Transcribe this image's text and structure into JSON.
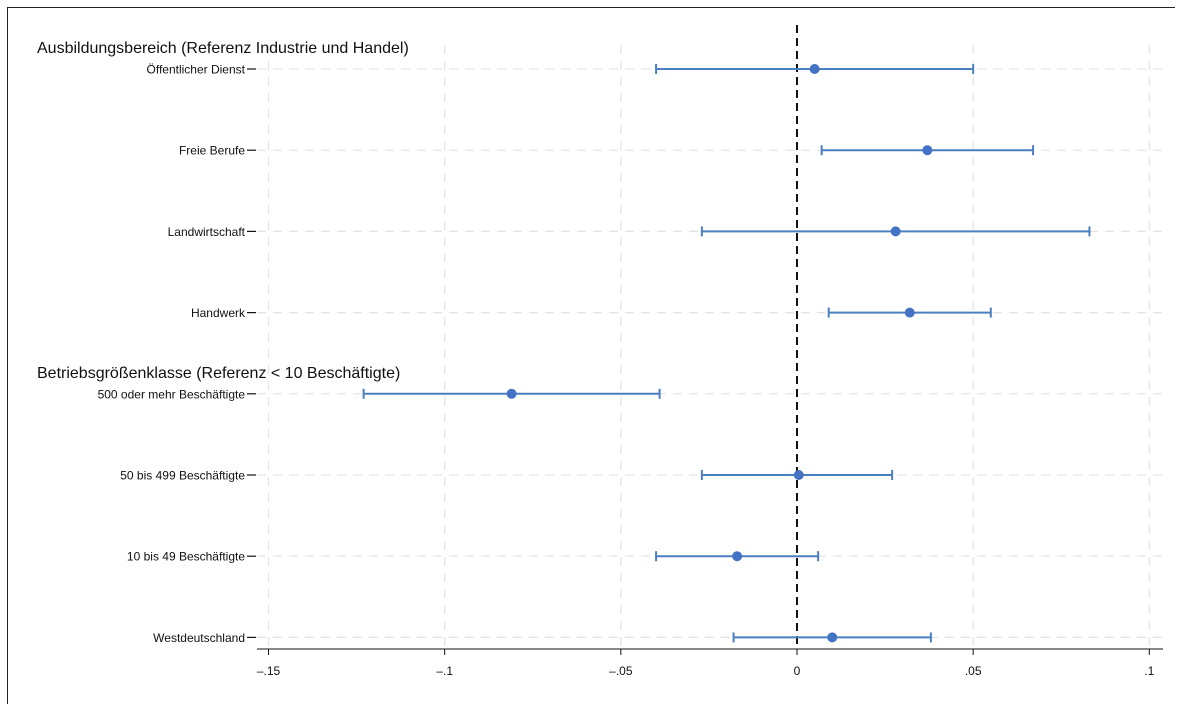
{
  "chart_data": {
    "type": "scatter",
    "subtype": "coefficient-plot-with-confidence-intervals",
    "title": "",
    "xlabel": "",
    "ylabel": "",
    "xlim": [
      -0.155,
      0.105
    ],
    "x_ticks": [
      -0.15,
      -0.1,
      -0.05,
      0,
      0.05,
      0.1
    ],
    "x_tick_labels": [
      "–.15",
      "–.1",
      "–.05",
      "0",
      ".05",
      ".1"
    ],
    "grid": true,
    "reference_line": {
      "x": 0,
      "style": "dashed",
      "color": "#111111"
    },
    "groups": [
      {
        "label": "Ausbildungsbereich (Referenz Industrie und Handel)",
        "categories": [
          {
            "label": "Öffentlicher Dienst",
            "estimate": 0.005,
            "ci": [
              -0.04,
              0.05
            ]
          },
          {
            "label": "Freie Berufe",
            "estimate": 0.037,
            "ci": [
              0.007,
              0.067
            ]
          },
          {
            "label": "Landwirtschaft",
            "estimate": 0.028,
            "ci": [
              -0.027,
              0.083
            ]
          },
          {
            "label": "Handwerk",
            "estimate": 0.032,
            "ci": [
              0.009,
              0.055
            ]
          }
        ]
      },
      {
        "label": "Betriebsgrößenklasse (Referenz < 10 Beschäftigte)",
        "categories": [
          {
            "label": "500 oder mehr Beschäftigte",
            "estimate": -0.081,
            "ci": [
              -0.123,
              -0.039
            ]
          },
          {
            "label": "50 bis 499 Beschäftigte",
            "estimate": 0.0005,
            "ci": [
              -0.027,
              0.027
            ]
          },
          {
            "label": "10 bis 49 Beschäftigte",
            "estimate": -0.017,
            "ci": [
              -0.04,
              0.006
            ]
          }
        ]
      },
      {
        "label": "",
        "categories": [
          {
            "label": "Westdeutschland",
            "estimate": 0.01,
            "ci": [
              -0.018,
              0.038
            ]
          }
        ]
      }
    ],
    "colors": {
      "marker": "#4472c4",
      "ci_line": "#4a7fc1",
      "grid": "#e3e3e3",
      "axis": "#111111"
    }
  }
}
